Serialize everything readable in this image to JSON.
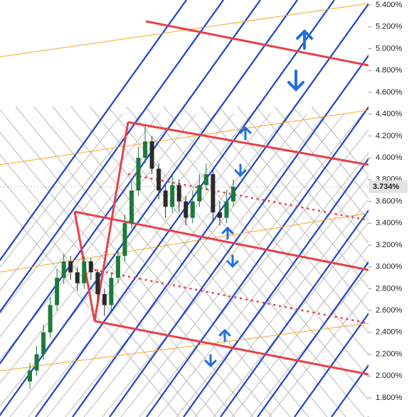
{
  "chart_data": {
    "type": "candlestick",
    "open": [
      1.95,
      2.05,
      2.2,
      2.4,
      2.65,
      2.9,
      3.05,
      2.95,
      2.85,
      3.05,
      2.95,
      2.75,
      2.65,
      2.9,
      3.1,
      3.4,
      3.7,
      4.0,
      4.15,
      3.9,
      3.7,
      3.55,
      3.75,
      3.6,
      3.45,
      3.6,
      3.75,
      3.85,
      3.5,
      3.45,
      3.6
    ],
    "high": [
      2.12,
      2.28,
      2.47,
      2.72,
      2.98,
      3.12,
      3.1,
      3.0,
      3.1,
      3.08,
      2.98,
      2.8,
      2.95,
      3.15,
      3.48,
      3.78,
      4.1,
      4.3,
      4.2,
      3.95,
      3.75,
      3.85,
      3.8,
      3.65,
      3.7,
      3.85,
      3.95,
      3.9,
      3.6,
      3.7,
      3.8
    ],
    "low": [
      1.88,
      2.0,
      2.15,
      2.35,
      2.6,
      2.84,
      2.88,
      2.78,
      2.8,
      2.88,
      2.68,
      2.55,
      2.6,
      2.85,
      3.05,
      3.35,
      3.65,
      3.95,
      3.85,
      3.62,
      3.45,
      3.5,
      3.5,
      3.38,
      3.4,
      3.55,
      3.7,
      3.42,
      3.38,
      3.4,
      3.55
    ],
    "close": [
      2.05,
      2.2,
      2.4,
      2.65,
      2.9,
      3.05,
      2.95,
      2.85,
      3.05,
      2.95,
      2.75,
      2.65,
      2.9,
      3.1,
      3.4,
      3.7,
      4.0,
      4.15,
      3.9,
      3.7,
      3.55,
      3.75,
      3.6,
      3.45,
      3.6,
      3.75,
      3.85,
      3.5,
      3.45,
      3.6,
      3.734
    ],
    "up_color": "#1b7a3a",
    "down_color": "#2a2a2a",
    "ylim": [
      1.624,
      5.446
    ],
    "yticks": [
      {
        "value": 1.8,
        "label": "1.800%"
      },
      {
        "value": 2.0,
        "label": "2.000%"
      },
      {
        "value": 2.2,
        "label": "2.200%"
      },
      {
        "value": 2.4,
        "label": "2.400%"
      },
      {
        "value": 2.6,
        "label": "2.600%"
      },
      {
        "value": 2.8,
        "label": "2.800%"
      },
      {
        "value": 3.0,
        "label": "3.000%"
      },
      {
        "value": 3.2,
        "label": "3.200%"
      },
      {
        "value": 3.4,
        "label": "3.400%"
      },
      {
        "value": 3.6,
        "label": "3.600%"
      },
      {
        "value": 3.8,
        "label": "3.800%"
      },
      {
        "value": 4.0,
        "label": "4.000%"
      },
      {
        "value": 4.2,
        "label": "4.200%"
      },
      {
        "value": 4.4,
        "label": "4.400%"
      },
      {
        "value": 4.6,
        "label": "4.600%"
      },
      {
        "value": 4.8,
        "label": "4.800%"
      },
      {
        "value": 5.0,
        "label": "5.000%"
      },
      {
        "value": 5.2,
        "label": "5.200%"
      },
      {
        "value": 5.4,
        "label": "5.400%"
      }
    ],
    "last_price": {
      "value": 3.734,
      "label": "3.734%"
    }
  }
}
